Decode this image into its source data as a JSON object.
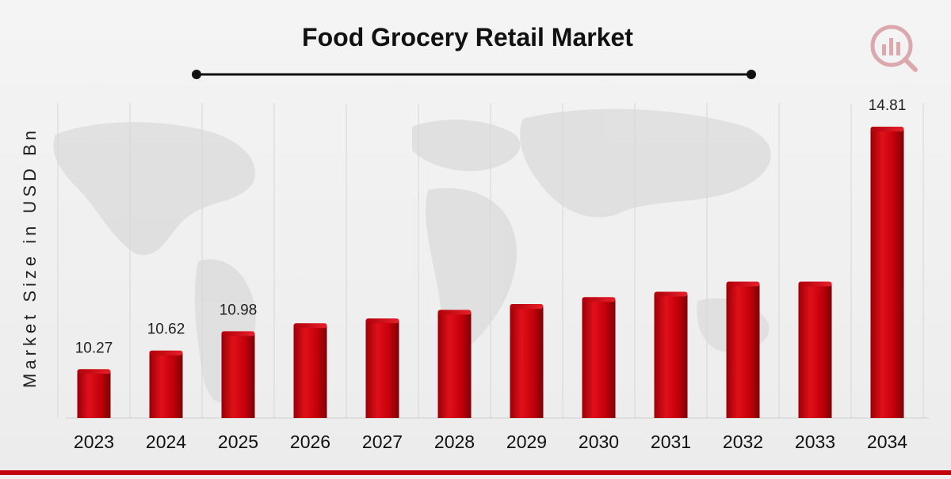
{
  "chart_data": {
    "type": "bar",
    "title": "Food Grocery Retail Market",
    "ylabel": "Market Size in USD Bn",
    "xlabel": "",
    "categories": [
      "2023",
      "2024",
      "2025",
      "2026",
      "2027",
      "2028",
      "2029",
      "2030",
      "2031",
      "2032",
      "2033",
      "2034"
    ],
    "values": [
      10.27,
      10.62,
      10.98,
      11.13,
      11.22,
      11.38,
      11.49,
      11.62,
      11.72,
      11.91,
      11.91,
      14.81
    ],
    "data_labels": {
      "0": "10.27",
      "1": "10.62",
      "2": "10.98",
      "11": "14.81"
    },
    "ylim": [
      9.4,
      15.3
    ],
    "grid": "vertical",
    "bar_color": "#c4000b",
    "accent_color": "#d40010"
  },
  "logo": {
    "name": "research-logo-icon"
  }
}
